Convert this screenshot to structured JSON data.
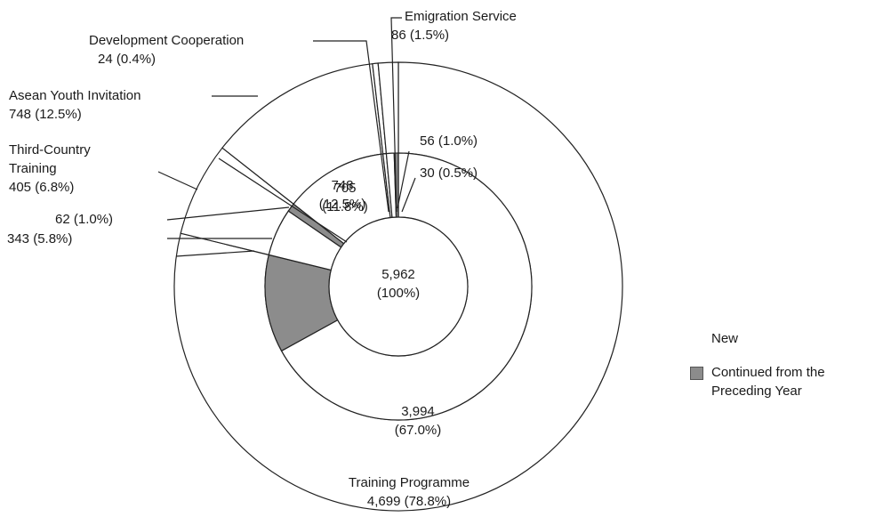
{
  "chart_data": {
    "type": "nested-donut",
    "center": {
      "value": 5962,
      "value_label": "5,962",
      "percent": 100,
      "percent_label": "(100%)"
    },
    "outer": {
      "categories": [
        "Training Programme",
        "Third-Country Training",
        "Asean Youth Invitation",
        "Development Cooperation",
        "Emigration Service"
      ],
      "values": [
        4699,
        405,
        748,
        24,
        86
      ],
      "value_labels": [
        "4,699",
        "405",
        "748",
        "24",
        "86"
      ],
      "percents": [
        78.8,
        6.8,
        12.5,
        0.4,
        1.5
      ],
      "percent_labels": [
        "(78.8%)",
        "(6.8%)",
        "(12.5%)",
        "(0.4%)",
        "(1.5%)"
      ],
      "color": "#ffffff"
    },
    "series": [
      {
        "name": "New",
        "color": "#ffffff",
        "values": [
          3994,
          343,
          748,
          24,
          56
        ],
        "value_labels": [
          "3,994",
          "343",
          "748",
          null,
          "56"
        ],
        "percents": [
          67.0,
          5.8,
          12.5,
          null,
          1.0
        ],
        "percent_labels": [
          "(67.0%)",
          "(5.8%)",
          "(12.5%)",
          null,
          "(1.0%)"
        ]
      },
      {
        "name": "Continued from the Preceding Year",
        "color": "#8c8c8c",
        "values": [
          705,
          62,
          null,
          null,
          30
        ],
        "value_labels": [
          "705",
          "62",
          null,
          null,
          "30"
        ],
        "percents": [
          11.8,
          1.0,
          null,
          null,
          0.5
        ],
        "percent_labels": [
          "(11.8%)",
          "(1.0%)",
          null,
          null,
          "(0.5%)"
        ]
      }
    ]
  }
}
